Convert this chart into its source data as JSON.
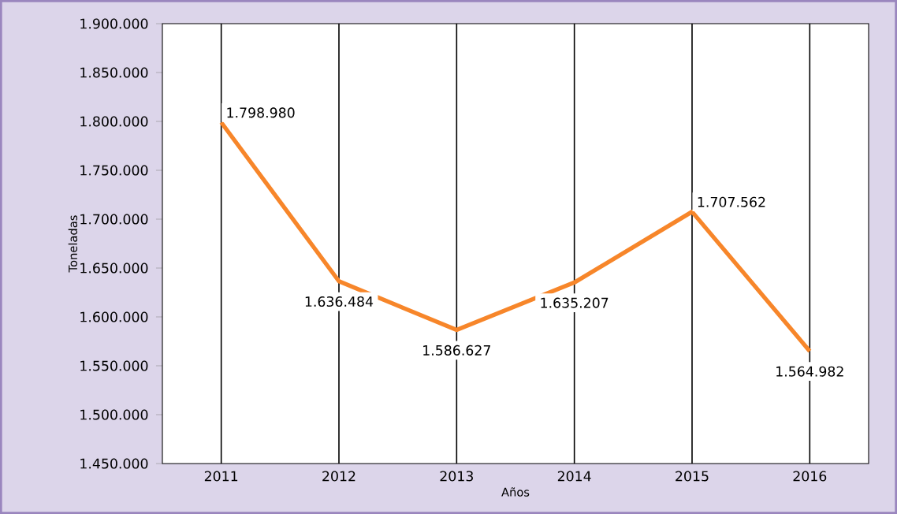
{
  "chart_data": {
    "type": "line",
    "xlabel": "Años",
    "ylabel": "Toneladas",
    "categories": [
      "2011",
      "2012",
      "2013",
      "2014",
      "2015",
      "2016"
    ],
    "series": [
      {
        "color": "#f7862a",
        "values": [
          1798980,
          1636484,
          1586627,
          1635207,
          1707562,
          1564982
        ],
        "value_labels": [
          "1.798.980",
          "1.636.484",
          "1.586.627",
          "1.635.207",
          "1.707.562",
          "1.564.982"
        ]
      }
    ],
    "ylim": [
      1450000,
      1900000
    ],
    "yticks": [
      {
        "value": 1450000,
        "label": "1.450.000"
      },
      {
        "value": 1500000,
        "label": "1.500.000"
      },
      {
        "value": 1550000,
        "label": "1.550.000"
      },
      {
        "value": 1600000,
        "label": "1.600.000"
      },
      {
        "value": 1650000,
        "label": "1.650.000"
      },
      {
        "value": 1700000,
        "label": "1.700.000"
      },
      {
        "value": 1750000,
        "label": "1.750.000"
      },
      {
        "value": 1800000,
        "label": "1.800.000"
      },
      {
        "value": 1850000,
        "label": "1.850.000"
      },
      {
        "value": 1900000,
        "label": "1.900.000"
      }
    ],
    "grid": "x",
    "marker": "none",
    "line_style": "solid"
  }
}
